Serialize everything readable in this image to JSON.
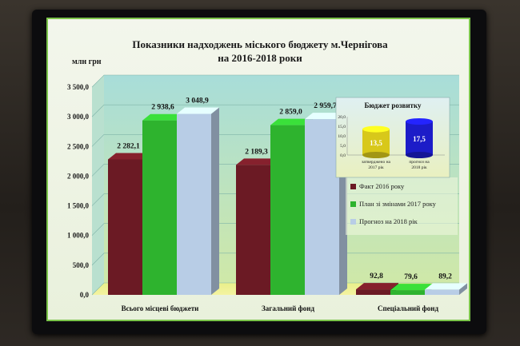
{
  "chart_data": [
    {
      "type": "bar",
      "title": "Показники надходжень міського бюджету м.Чернігова",
      "subtitle": "на 2016-2018 роки",
      "ylabel": "млн грн",
      "ylim": [
        0,
        3500
      ],
      "yticks": [
        "0,0",
        "500,0",
        "1 000,0",
        "1 500,0",
        "2 000,0",
        "2 500,0",
        "3 000,0",
        "3 500,0"
      ],
      "categories": [
        "Всього місцеві бюджети",
        "Загальний фонд",
        "Спеціальний фонд"
      ],
      "series": [
        {
          "name": "Факт 2016 року",
          "values": [
            2282.1,
            2189.3,
            92.8
          ],
          "labels": [
            "2 282,1",
            "2 189,3",
            "92,8"
          ],
          "color": "#6b1a24"
        },
        {
          "name": "План зі змінами 2017 року",
          "values": [
            2938.6,
            2859.0,
            79.6
          ],
          "labels": [
            "2 938,6",
            "2 859,0",
            "79,6"
          ],
          "color": "#2eb32e"
        },
        {
          "name": "Прогноз на 2018 рік",
          "values": [
            3048.9,
            2959.7,
            89.2
          ],
          "labels": [
            "3 048,9",
            "2 959,7",
            "89,2"
          ],
          "color": "#b8cde6"
        }
      ],
      "legend": "right"
    },
    {
      "type": "bar",
      "title": "Бюджет розвитку",
      "ylim": [
        0,
        20
      ],
      "yticks": [
        "0,0",
        "5,0",
        "10,0",
        "15,0",
        "20,0"
      ],
      "categories": [
        "затверджено на 2017 рік",
        "прогноз на 2018 рік"
      ],
      "values": [
        13.5,
        17.5
      ],
      "labels": [
        "13,5",
        "17,5"
      ],
      "colors": [
        "#d8c81a",
        "#1c1cc8"
      ]
    }
  ]
}
